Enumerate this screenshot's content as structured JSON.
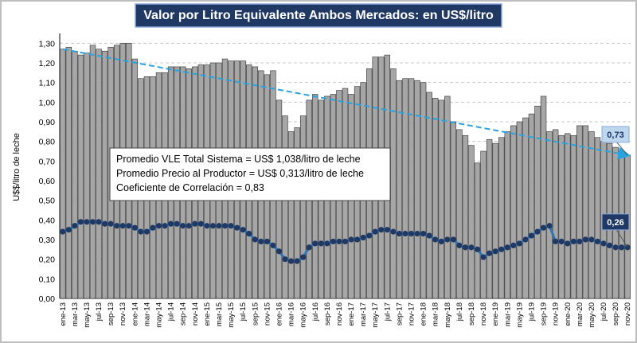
{
  "chart_data": {
    "type": "bar",
    "title": "Valor por Litro Equivalente Ambos Mercados: en US$/litro",
    "y_label": "U$$/litro de leche",
    "categories": [
      "ene-13",
      null,
      "mar-13",
      null,
      "may-13",
      null,
      "jul-13",
      null,
      "sep-13",
      null,
      "nov-13",
      null,
      "ene-14",
      null,
      "mar-14",
      null,
      "may-14",
      null,
      "jul-14",
      null,
      "sep-14",
      null,
      "nov-14",
      null,
      "ene-15",
      null,
      "mar-15",
      null,
      "may-15",
      null,
      "jul-15",
      null,
      "sep-15",
      null,
      "nov-15",
      null,
      "ene-16",
      null,
      "mar-16",
      null,
      "may-16",
      null,
      "jul-16",
      null,
      "sep-16",
      null,
      "nov-16",
      null,
      "ene-17",
      null,
      "mar-17",
      null,
      "may-17",
      null,
      "jul-17",
      null,
      "sep-17",
      null,
      "nov-17",
      null,
      "ene-18",
      null,
      "mar-18",
      null,
      "may-18",
      null,
      "jul-18",
      null,
      "sep-18",
      null,
      "nov-18",
      null,
      "ene-19",
      null,
      "mar-19",
      null,
      "may-19",
      null,
      "jul-19",
      null,
      "sep-19",
      null,
      "nov-19",
      null,
      "ene-20",
      null,
      "mar-20",
      null,
      "may-20",
      null,
      "jul-20",
      null,
      "sep-20",
      null,
      "nov-20"
    ],
    "series": [
      {
        "type": "bar",
        "color": "#a6a6a6",
        "values": [
          1.27,
          1.28,
          1.26,
          1.24,
          1.25,
          1.29,
          1.27,
          1.26,
          1.28,
          1.29,
          1.3,
          1.3,
          1.22,
          1.12,
          1.13,
          1.13,
          1.15,
          1.15,
          1.18,
          1.18,
          1.18,
          1.17,
          1.18,
          1.19,
          1.19,
          1.2,
          1.2,
          1.22,
          1.21,
          1.21,
          1.21,
          1.19,
          1.18,
          1.16,
          1.14,
          1.16,
          1.01,
          0.93,
          0.85,
          0.87,
          0.93,
          1.01,
          1.04,
          1.01,
          1.03,
          1.04,
          1.06,
          1.07,
          1.04,
          1.08,
          1.1,
          1.17,
          1.23,
          1.23,
          1.24,
          1.17,
          1.11,
          1.12,
          1.12,
          1.11,
          1.1,
          1.05,
          1.02,
          1.01,
          1.03,
          0.9,
          0.86,
          0.83,
          0.78,
          0.69,
          0.75,
          0.81,
          0.79,
          0.82,
          0.85,
          0.88,
          0.9,
          0.92,
          0.94,
          0.98,
          1.03,
          0.85,
          0.86,
          0.83,
          0.84,
          0.83,
          0.88,
          0.88,
          0.85,
          0.82,
          0.8,
          0.79,
          0.77,
          0.75,
          0.73
        ]
      },
      {
        "type": "line",
        "color": "#1f3864",
        "values": [
          0.34,
          0.35,
          0.37,
          0.39,
          0.39,
          0.39,
          0.39,
          0.38,
          0.38,
          0.37,
          0.37,
          0.37,
          0.36,
          0.34,
          0.34,
          0.36,
          0.37,
          0.37,
          0.38,
          0.38,
          0.37,
          0.37,
          0.38,
          0.38,
          0.37,
          0.37,
          0.37,
          0.37,
          0.37,
          0.36,
          0.35,
          0.33,
          0.3,
          0.29,
          0.29,
          0.27,
          0.24,
          0.2,
          0.19,
          0.19,
          0.21,
          0.26,
          0.28,
          0.28,
          0.28,
          0.29,
          0.29,
          0.29,
          0.3,
          0.3,
          0.31,
          0.32,
          0.34,
          0.35,
          0.35,
          0.34,
          0.33,
          0.33,
          0.33,
          0.33,
          0.33,
          0.32,
          0.3,
          0.29,
          0.3,
          0.3,
          0.27,
          0.26,
          0.26,
          0.25,
          0.21,
          0.23,
          0.24,
          0.25,
          0.26,
          0.27,
          0.28,
          0.3,
          0.32,
          0.34,
          0.36,
          0.37,
          0.29,
          0.29,
          0.28,
          0.29,
          0.29,
          0.3,
          0.3,
          0.29,
          0.28,
          0.27,
          0.26,
          0.26,
          0.26
        ]
      }
    ],
    "trend": {
      "color": "#29a3e0",
      "values": [
        1.27,
        0.73
      ]
    },
    "end_labels": [
      {
        "value": 0.73,
        "label": "0,73"
      },
      {
        "value": 0.26,
        "label": "0,26"
      }
    ],
    "notes": [
      "Promedio VLE Total Sistema = US$ 1,038/litro de leche",
      "Promedio Precio al Productor = US$ 0,313/litro de leche",
      "Coeficiente de Correlación = 0,83"
    ],
    "ylim": [
      0,
      1.35
    ],
    "yticks": [
      {
        "value": 0,
        "label": "0,00"
      },
      {
        "value": 0.1,
        "label": "0,10"
      },
      {
        "value": 0.2,
        "label": "0,20"
      },
      {
        "value": 0.3,
        "label": "0,30"
      },
      {
        "value": 0.4,
        "label": "0,40"
      },
      {
        "value": 0.5,
        "label": "0,50"
      },
      {
        "value": 0.6,
        "label": "0,60"
      },
      {
        "value": 0.7,
        "label": "0,70"
      },
      {
        "value": 0.8,
        "label": "0,80"
      },
      {
        "value": 0.9,
        "label": "0,90"
      },
      {
        "value": 1.0,
        "label": "1,00"
      },
      {
        "value": 1.1,
        "label": "1,10"
      },
      {
        "value": 1.2,
        "label": "1,20"
      },
      {
        "value": 1.3,
        "label": "1,30"
      }
    ],
    "grid": true
  }
}
